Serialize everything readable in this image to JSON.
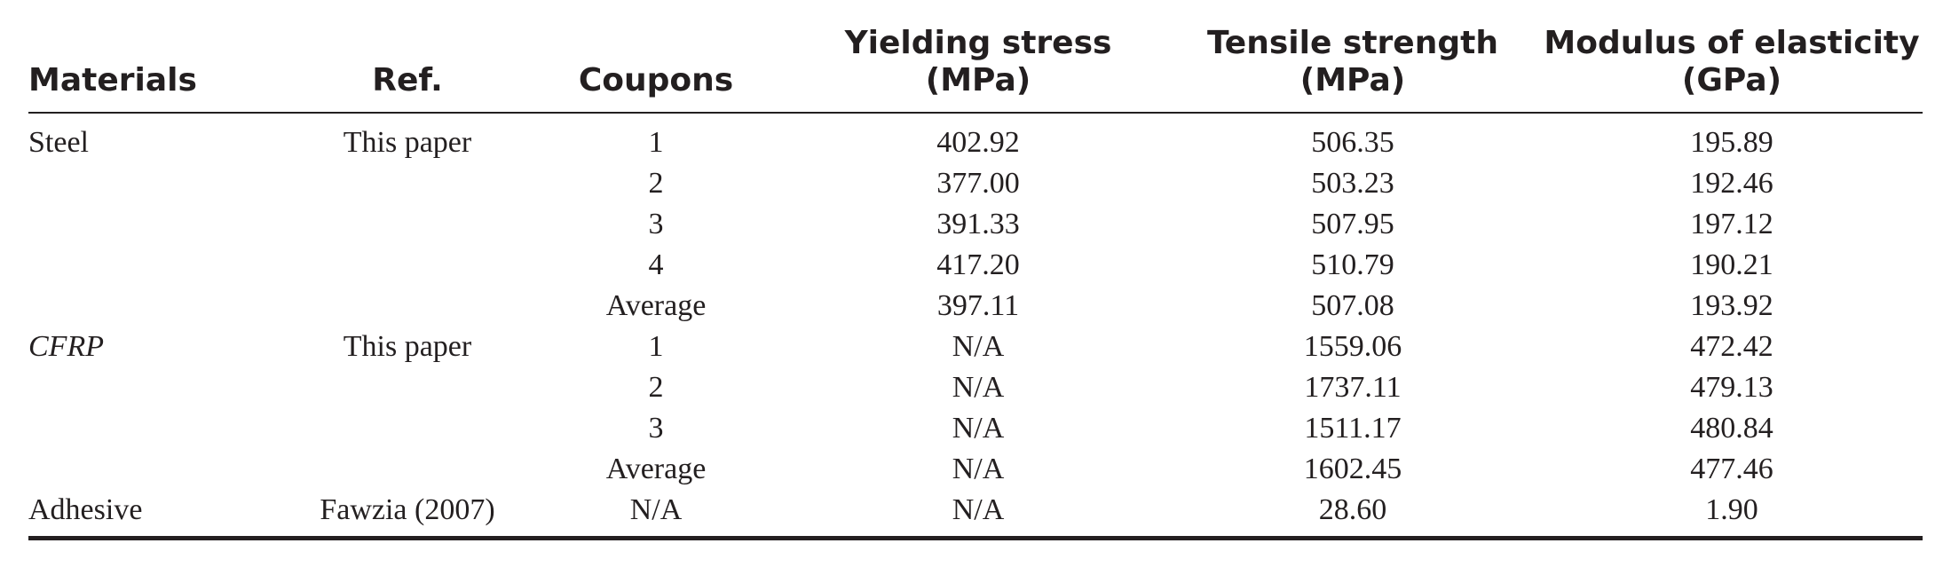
{
  "table": {
    "headers": {
      "materials": "Materials",
      "ref": "Ref.",
      "coupons": "Coupons",
      "yielding_line1": "Yielding stress",
      "yielding_line2": "(MPa)",
      "tensile_line1": "Tensile strength",
      "tensile_line2": "(MPa)",
      "modulus_line1": "Modulus of elasticity",
      "modulus_line2": "(GPa)"
    },
    "rows": [
      {
        "material": "Steel",
        "ref": "This paper",
        "coupons": "1",
        "yielding": "402.92",
        "tensile": "506.35",
        "modulus": "195.89"
      },
      {
        "material": "",
        "ref": "",
        "coupons": "2",
        "yielding": "377.00",
        "tensile": "503.23",
        "modulus": "192.46"
      },
      {
        "material": "",
        "ref": "",
        "coupons": "3",
        "yielding": "391.33",
        "tensile": "507.95",
        "modulus": "197.12"
      },
      {
        "material": "",
        "ref": "",
        "coupons": "4",
        "yielding": "417.20",
        "tensile": "510.79",
        "modulus": "190.21"
      },
      {
        "material": "",
        "ref": "",
        "coupons": "Average",
        "yielding": "397.11",
        "tensile": "507.08",
        "modulus": "193.92"
      },
      {
        "material": "CFRP",
        "ref": "This paper",
        "coupons": "1",
        "yielding": "N/A",
        "tensile": "1559.06",
        "modulus": "472.42"
      },
      {
        "material": "",
        "ref": "",
        "coupons": "2",
        "yielding": "N/A",
        "tensile": "1737.11",
        "modulus": "479.13"
      },
      {
        "material": "",
        "ref": "",
        "coupons": "3",
        "yielding": "N/A",
        "tensile": "1511.17",
        "modulus": "480.84"
      },
      {
        "material": "",
        "ref": "",
        "coupons": "Average",
        "yielding": "N/A",
        "tensile": "1602.45",
        "modulus": "477.46"
      },
      {
        "material": "Adhesive",
        "ref": "Fawzia (2007)",
        "coupons": "N/A",
        "yielding": "N/A",
        "tensile": "28.60",
        "modulus": "1.90"
      }
    ]
  }
}
